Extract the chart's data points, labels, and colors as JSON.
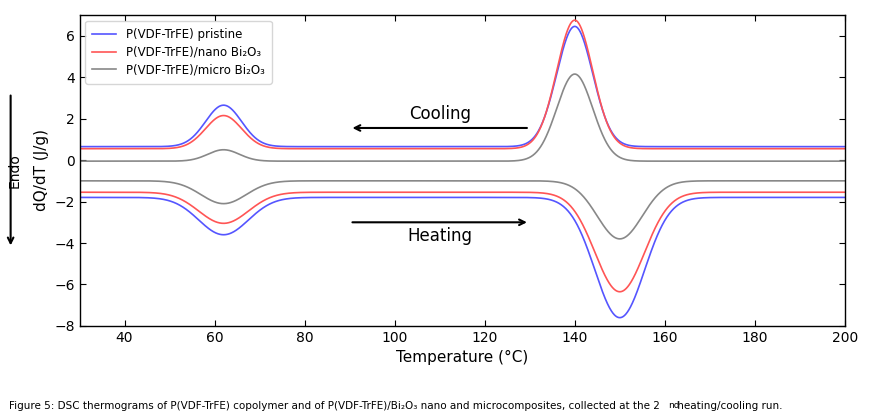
{
  "xlim": [
    30,
    200
  ],
  "ylim": [
    -8,
    7
  ],
  "yticks": [
    -8,
    -6,
    -4,
    -2,
    0,
    2,
    4,
    6
  ],
  "xticks": [
    40,
    60,
    80,
    100,
    120,
    140,
    160,
    180,
    200
  ],
  "xlabel": "Temperature (°C)",
  "ylabel": "dQ/dT (J/g)",
  "colors": {
    "pristine": "#5555ff",
    "nano": "#ff5555",
    "micro": "#888888"
  },
  "legend": [
    "P(VDF-TrFE) pristine",
    "P(VDF-TrFE)/nano Bi₂O₃",
    "P(VDF-TrFE)/micro Bi₂O₃"
  ],
  "caption": "Figure 5: DSC thermograms of P(VDF-TrFE) copolymer and of P(VDF-TrFE)/Bi₂O₃ nano and microcomposites, collected at the 2",
  "caption_super": "nd",
  "caption_end": " heating/cooling run.",
  "figure_width": 8.73,
  "figure_height": 4.18,
  "background_color": "#ffffff"
}
